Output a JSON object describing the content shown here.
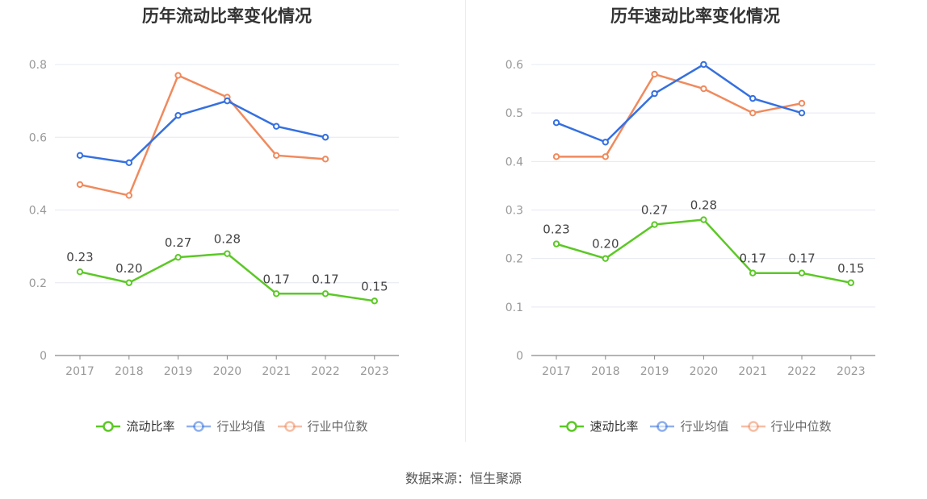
{
  "chart_data": [
    {
      "type": "line",
      "title": "历年流动比率变化情况",
      "categories": [
        "2017",
        "2018",
        "2019",
        "2020",
        "2021",
        "2022",
        "2023"
      ],
      "ylim": [
        0,
        0.8
      ],
      "yticks": [
        "0",
        "0.2",
        "0.4",
        "0.6",
        "0.8"
      ],
      "grid": true,
      "legend_position": "bottom",
      "series": [
        {
          "name": "流动比率",
          "color": "#5cc826",
          "values": [
            0.23,
            0.2,
            0.27,
            0.28,
            0.17,
            0.17,
            0.15
          ],
          "labels": [
            "0.23",
            "0.20",
            "0.27",
            "0.28",
            "0.17",
            "0.17",
            "0.15"
          ]
        },
        {
          "name": "行业均值",
          "color": "#3570e0",
          "values": [
            0.55,
            0.53,
            0.66,
            0.7,
            0.63,
            0.6,
            null
          ]
        },
        {
          "name": "行业中位数",
          "color": "#f08a5d",
          "values": [
            0.47,
            0.44,
            0.77,
            0.71,
            0.55,
            0.54,
            null
          ]
        }
      ]
    },
    {
      "type": "line",
      "title": "历年速动比率变化情况",
      "categories": [
        "2017",
        "2018",
        "2019",
        "2020",
        "2021",
        "2022",
        "2023"
      ],
      "ylim": [
        0,
        0.6
      ],
      "yticks": [
        "0",
        "0.1",
        "0.2",
        "0.3",
        "0.4",
        "0.5",
        "0.6"
      ],
      "grid": true,
      "legend_position": "bottom",
      "series": [
        {
          "name": "速动比率",
          "color": "#5cc826",
          "values": [
            0.23,
            0.2,
            0.27,
            0.28,
            0.17,
            0.17,
            0.15
          ],
          "labels": [
            "0.23",
            "0.20",
            "0.27",
            "0.28",
            "0.17",
            "0.17",
            "0.15"
          ]
        },
        {
          "name": "行业均值",
          "color": "#3570e0",
          "values": [
            0.48,
            0.44,
            0.54,
            0.6,
            0.53,
            0.5,
            null
          ]
        },
        {
          "name": "行业中位数",
          "color": "#f08a5d",
          "values": [
            0.41,
            0.41,
            0.58,
            0.55,
            0.5,
            0.52,
            null
          ]
        }
      ]
    }
  ],
  "source": "数据来源：恒生聚源"
}
